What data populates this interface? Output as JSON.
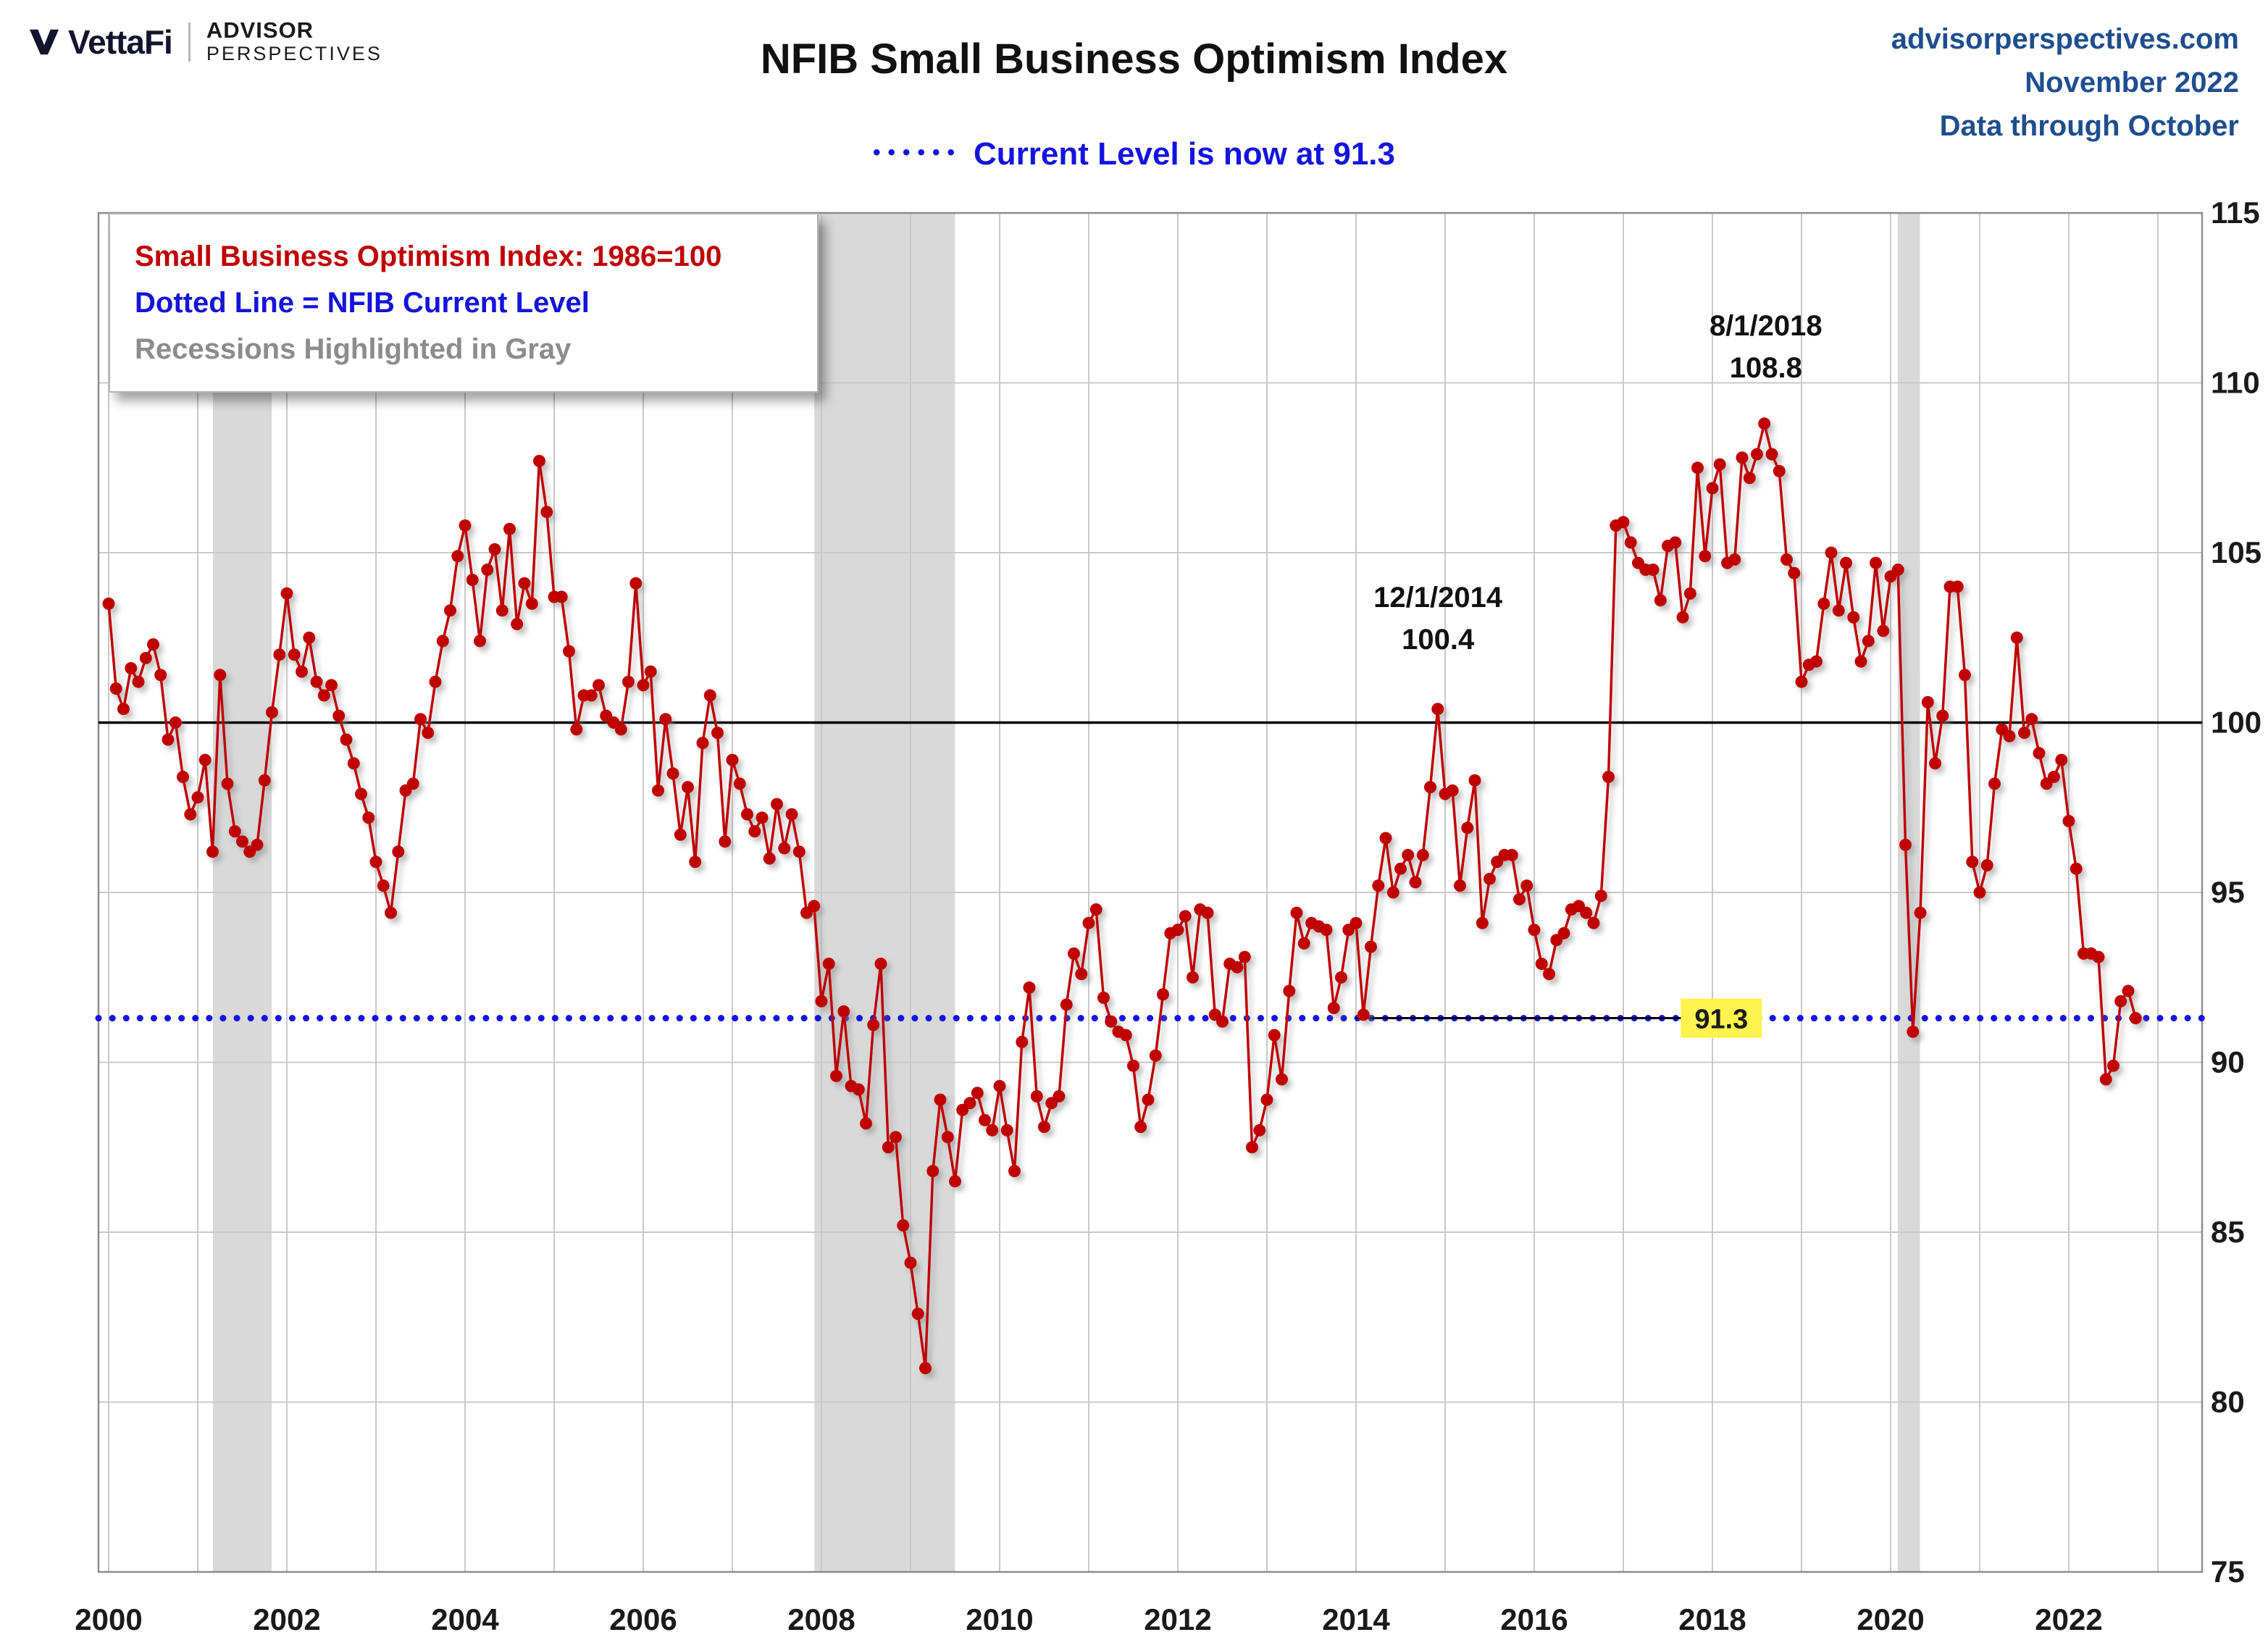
{
  "header": {
    "brand": {
      "vettafi": "VettaFi",
      "advisor_line1": "ADVISOR",
      "advisor_line2": "PERSPECTIVES"
    },
    "source": {
      "line1": "advisorperspectives.com",
      "line2": "November 2022",
      "line3": "Data through October"
    }
  },
  "legend": {
    "line1": "Small Business Optimism Index: 1986=100",
    "line2": "Dotted Line = NFIB Current Level",
    "line3": "Recessions Highlighted in Gray"
  },
  "chart_data": {
    "type": "line",
    "title": "NFIB Small Business Optimism Index",
    "subtitle_dots": "••••••",
    "subtitle": "Current Level is now at 91.3",
    "frequency": "monthly",
    "start_year": 2000,
    "start_month": 1,
    "end_label": "2022-10",
    "series": [
      {
        "name": "Small Business Optimism Index (1986=100)",
        "values": [
          103.5,
          101.0,
          100.4,
          101.6,
          101.2,
          101.9,
          102.3,
          101.4,
          99.5,
          100.0,
          98.4,
          97.3,
          97.8,
          98.9,
          96.2,
          101.4,
          98.2,
          96.8,
          96.5,
          96.2,
          96.4,
          98.3,
          100.3,
          102.0,
          103.8,
          102.0,
          101.5,
          102.5,
          101.2,
          100.8,
          101.1,
          100.2,
          99.5,
          98.8,
          97.9,
          97.2,
          95.9,
          95.2,
          94.4,
          96.2,
          98.0,
          98.2,
          100.1,
          99.7,
          101.2,
          102.4,
          103.3,
          104.9,
          105.8,
          104.2,
          102.4,
          104.5,
          105.1,
          103.3,
          105.7,
          102.9,
          104.1,
          103.5,
          107.7,
          106.2,
          103.7,
          103.7,
          102.1,
          99.8,
          100.8,
          100.8,
          101.1,
          100.2,
          100.0,
          99.8,
          101.2,
          104.1,
          101.1,
          101.5,
          98.0,
          100.1,
          98.5,
          96.7,
          98.1,
          95.9,
          99.4,
          100.8,
          99.7,
          96.5,
          98.9,
          98.2,
          97.3,
          96.8,
          97.2,
          96.0,
          97.6,
          96.3,
          97.3,
          96.2,
          94.4,
          94.6,
          91.8,
          92.9,
          89.6,
          91.5,
          89.3,
          89.2,
          88.2,
          91.1,
          92.9,
          87.5,
          87.8,
          85.2,
          84.1,
          82.6,
          81.0,
          86.8,
          88.9,
          87.8,
          86.5,
          88.6,
          88.8,
          89.1,
          88.3,
          88.0,
          89.3,
          88.0,
          86.8,
          90.6,
          92.2,
          89.0,
          88.1,
          88.8,
          89.0,
          91.7,
          93.2,
          92.6,
          94.1,
          94.5,
          91.9,
          91.2,
          90.9,
          90.8,
          89.9,
          88.1,
          88.9,
          90.2,
          92.0,
          93.8,
          93.9,
          94.3,
          92.5,
          94.5,
          94.4,
          91.4,
          91.2,
          92.9,
          92.8,
          93.1,
          87.5,
          88.0,
          88.9,
          90.8,
          89.5,
          92.1,
          94.4,
          93.5,
          94.1,
          94.0,
          93.9,
          91.6,
          92.5,
          93.9,
          94.1,
          91.4,
          93.4,
          95.2,
          96.6,
          95.0,
          95.7,
          96.1,
          95.3,
          96.1,
          98.1,
          100.4,
          97.9,
          98.0,
          95.2,
          96.9,
          98.3,
          94.1,
          95.4,
          95.9,
          96.1,
          96.1,
          94.8,
          95.2,
          93.9,
          92.9,
          92.6,
          93.6,
          93.8,
          94.5,
          94.6,
          94.4,
          94.1,
          94.9,
          98.4,
          105.8,
          105.9,
          105.3,
          104.7,
          104.5,
          104.5,
          103.6,
          105.2,
          105.3,
          103.1,
          103.8,
          107.5,
          104.9,
          106.9,
          107.6,
          104.7,
          104.8,
          107.8,
          107.2,
          107.9,
          108.8,
          107.9,
          107.4,
          104.8,
          104.4,
          101.2,
          101.7,
          101.8,
          103.5,
          105.0,
          103.3,
          104.7,
          103.1,
          101.8,
          102.4,
          104.7,
          102.7,
          104.3,
          104.5,
          96.4,
          90.9,
          94.4,
          100.6,
          98.8,
          100.2,
          104.0,
          104.0,
          101.4,
          95.9,
          95.0,
          95.8,
          98.2,
          99.8,
          99.6,
          102.5,
          99.7,
          100.1,
          99.1,
          98.2,
          98.4,
          98.9,
          97.1,
          95.7,
          93.2,
          93.2,
          93.1,
          89.5,
          89.9,
          91.8,
          92.1,
          91.3
        ]
      }
    ],
    "ylim": [
      75,
      115
    ],
    "y_ticks": [
      75,
      80,
      85,
      90,
      95,
      100,
      105,
      110,
      115
    ],
    "x_ticks": [
      2000,
      2002,
      2004,
      2006,
      2008,
      2010,
      2012,
      2014,
      2016,
      2018,
      2020,
      2022
    ],
    "x_gridline_years": [
      2000,
      2023
    ],
    "grid": "on",
    "baseline": 100,
    "current_level": 91.3,
    "current_level_label": "91.3",
    "current_label_x": 2018.1,
    "leader_line": {
      "y": 91.3,
      "x1": 2014.0,
      "x2": 2017.78
    },
    "recessions": [
      [
        2001.17,
        2001.83
      ],
      [
        2007.92,
        2009.5
      ],
      [
        2020.08,
        2020.33
      ]
    ],
    "annotations": [
      {
        "line1": "12/1/2014",
        "line2": "100.4",
        "x": 2014.92,
        "y": 103.4
      },
      {
        "line1": "8/1/2018",
        "line2": "108.8",
        "x": 2018.6,
        "y": 111.4
      }
    ],
    "colors": {
      "series": "#C00000",
      "current": "#1414E0",
      "baseline": "#000000",
      "grid": "#C9C9C9",
      "border": "#8C8C8C",
      "recession": "#D9D9D9",
      "highlight_bg": "#FFF34D",
      "axis_text": "#1A1A1A",
      "source_blue": "#1F4E8F",
      "legend_red": "#C00000",
      "legend_blue": "#1414DC"
    }
  }
}
